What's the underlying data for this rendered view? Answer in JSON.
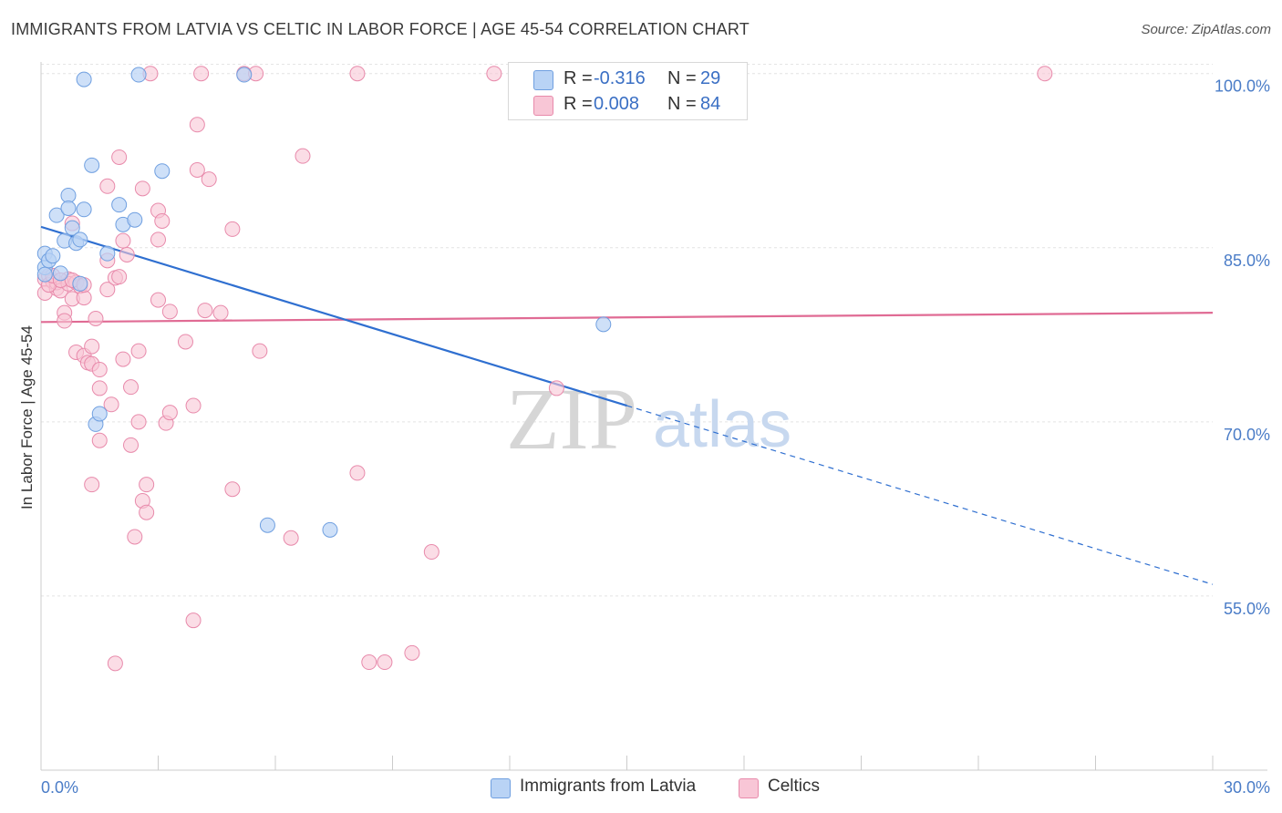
{
  "header": {
    "title": "IMMIGRANTS FROM LATVIA VS CELTIC IN LABOR FORCE | AGE 45-54 CORRELATION CHART",
    "source": "Source: ZipAtlas.com"
  },
  "legend": {
    "rows": [
      {
        "r_label": "R =",
        "r_value": "-0.316",
        "n_label": "N =",
        "n_value": "29"
      },
      {
        "r_label": "R =",
        "r_value": "0.008",
        "n_label": "N =",
        "n_value": "84"
      }
    ]
  },
  "bottom_legend": {
    "items": [
      {
        "label": "Immigrants from Latvia"
      },
      {
        "label": "Celtics"
      }
    ]
  },
  "watermark": {
    "zip": "ZIP",
    "atlas": "atlas"
  },
  "colors": {
    "latvia_fill": "#b9d3f5",
    "latvia_stroke": "#6f9fe0",
    "latvia_line": "#2f6fd0",
    "celtic_fill": "#f8c6d6",
    "celtic_stroke": "#e88aab",
    "celtic_line": "#e06b94",
    "grid": "#e4e4e4",
    "axis_text": "#4a7cc7"
  },
  "chart_data": {
    "type": "scatter",
    "title": "IMMIGRANTS FROM LATVIA VS CELTIC IN LABOR FORCE | AGE 45-54 CORRELATION CHART",
    "xlabel": "",
    "ylabel": "In Labor Force | Age 45-54",
    "xlim": [
      0,
      30
    ],
    "ylim": [
      40,
      101
    ],
    "x_tick_labels": [
      "0.0%",
      "30.0%"
    ],
    "y_ticks": [
      55,
      70,
      85,
      100
    ],
    "y_tick_labels": [
      "55.0%",
      "70.0%",
      "85.0%",
      "100.0%"
    ],
    "grid": true,
    "legend_position": "top-center",
    "series": [
      {
        "name": "Immigrants from Latvia",
        "points": [
          [
            0.1,
            83.3
          ],
          [
            0.1,
            84.5
          ],
          [
            0.1,
            82.7
          ],
          [
            0.2,
            83.9
          ],
          [
            0.3,
            84.3
          ],
          [
            0.4,
            87.8
          ],
          [
            0.5,
            82.8
          ],
          [
            0.6,
            85.6
          ],
          [
            0.7,
            89.5
          ],
          [
            0.7,
            88.4
          ],
          [
            0.8,
            86.7
          ],
          [
            0.9,
            85.4
          ],
          [
            1.0,
            81.9
          ],
          [
            1.0,
            85.7
          ],
          [
            1.1,
            88.3
          ],
          [
            1.1,
            99.5
          ],
          [
            1.3,
            92.1
          ],
          [
            1.4,
            69.8
          ],
          [
            1.5,
            70.7
          ],
          [
            1.7,
            84.5
          ],
          [
            2.0,
            88.7
          ],
          [
            2.1,
            87.0
          ],
          [
            2.4,
            87.4
          ],
          [
            2.5,
            99.9
          ],
          [
            3.1,
            91.6
          ],
          [
            5.2,
            99.9
          ],
          [
            5.8,
            61.1
          ],
          [
            7.4,
            60.7
          ],
          [
            14.4,
            78.4
          ]
        ],
        "trend": {
          "x": [
            0,
            15
          ],
          "y": [
            86.8,
            71.4
          ]
        },
        "trend_extension": {
          "x": [
            15,
            30
          ],
          "y": [
            71.4,
            56.0
          ]
        }
      },
      {
        "name": "Celtics",
        "points": [
          [
            0.1,
            82.3
          ],
          [
            0.1,
            81.1
          ],
          [
            0.2,
            82.6
          ],
          [
            0.3,
            82.1
          ],
          [
            0.4,
            81.5
          ],
          [
            0.4,
            82.0
          ],
          [
            0.5,
            81.3
          ],
          [
            0.6,
            79.4
          ],
          [
            0.6,
            78.7
          ],
          [
            0.7,
            82.3
          ],
          [
            0.7,
            81.9
          ],
          [
            0.8,
            87.1
          ],
          [
            0.8,
            80.6
          ],
          [
            0.9,
            76.0
          ],
          [
            0.9,
            82.0
          ],
          [
            1.0,
            81.7
          ],
          [
            1.1,
            80.7
          ],
          [
            1.1,
            75.7
          ],
          [
            1.2,
            75.1
          ],
          [
            1.3,
            76.5
          ],
          [
            1.3,
            75.0
          ],
          [
            1.3,
            64.6
          ],
          [
            1.4,
            78.9
          ],
          [
            1.5,
            72.9
          ],
          [
            1.5,
            74.5
          ],
          [
            1.5,
            68.4
          ],
          [
            1.7,
            90.3
          ],
          [
            1.7,
            83.9
          ],
          [
            1.7,
            81.4
          ],
          [
            1.8,
            71.5
          ],
          [
            1.9,
            82.4
          ],
          [
            1.9,
            49.2
          ],
          [
            2.0,
            92.8
          ],
          [
            2.0,
            82.5
          ],
          [
            2.1,
            85.6
          ],
          [
            2.1,
            75.4
          ],
          [
            2.2,
            84.4
          ],
          [
            2.3,
            68.0
          ],
          [
            2.3,
            73.0
          ],
          [
            2.4,
            60.1
          ],
          [
            2.5,
            70.0
          ],
          [
            2.5,
            76.1
          ],
          [
            2.6,
            63.2
          ],
          [
            2.6,
            90.1
          ],
          [
            2.7,
            64.6
          ],
          [
            2.7,
            62.2
          ],
          [
            2.8,
            100.0
          ],
          [
            3.0,
            88.2
          ],
          [
            3.0,
            80.5
          ],
          [
            3.0,
            85.7
          ],
          [
            3.1,
            87.3
          ],
          [
            3.2,
            69.9
          ],
          [
            3.3,
            70.8
          ],
          [
            3.3,
            79.5
          ],
          [
            3.7,
            76.9
          ],
          [
            3.9,
            71.4
          ],
          [
            3.9,
            52.9
          ],
          [
            4.0,
            95.6
          ],
          [
            4.0,
            91.7
          ],
          [
            4.1,
            100.0
          ],
          [
            4.2,
            79.6
          ],
          [
            4.3,
            90.9
          ],
          [
            4.6,
            79.4
          ],
          [
            4.9,
            64.2
          ],
          [
            4.9,
            86.6
          ],
          [
            5.2,
            100.0
          ],
          [
            5.5,
            100.0
          ],
          [
            5.6,
            76.1
          ],
          [
            6.4,
            60.0
          ],
          [
            6.7,
            92.9
          ],
          [
            8.1,
            65.6
          ],
          [
            8.1,
            100.0
          ],
          [
            8.4,
            49.3
          ],
          [
            8.8,
            49.3
          ],
          [
            9.5,
            50.1
          ],
          [
            10.0,
            58.8
          ],
          [
            11.6,
            100.0
          ],
          [
            13.2,
            72.9
          ],
          [
            25.7,
            100.0
          ],
          [
            0.2,
            81.8
          ],
          [
            0.3,
            82.6
          ],
          [
            0.5,
            82.2
          ],
          [
            0.8,
            82.2
          ],
          [
            1.1,
            81.8
          ]
        ],
        "trend": {
          "x": [
            0,
            30
          ],
          "y": [
            78.6,
            79.4
          ]
        }
      }
    ]
  }
}
